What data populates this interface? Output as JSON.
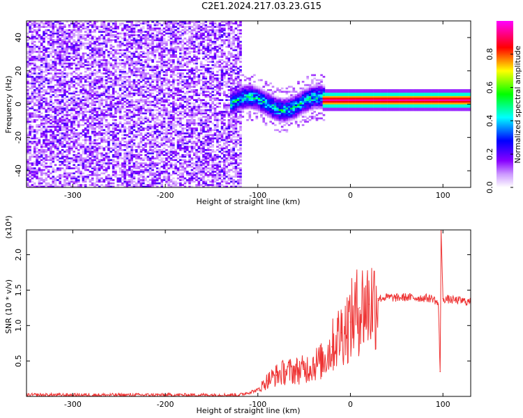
{
  "title": "C2E1.2024.217.03.23.G15",
  "chart_data": [
    {
      "type": "heatmap",
      "xlabel": "Height of straight line (km)",
      "ylabel": "Frequency (Hz)",
      "xlim": [
        -350,
        130
      ],
      "ylim": [
        -50,
        50
      ],
      "x_ticks": [
        -300,
        -200,
        -100,
        0,
        100
      ],
      "y_ticks": [
        -40,
        -20,
        0,
        20,
        40
      ],
      "colorbar": {
        "label": "Normalized spectral amplitude",
        "range": [
          0,
          1
        ],
        "ticks": [
          "0.0",
          "0.2",
          "0.4",
          "0.6",
          "0.8"
        ],
        "colormap": [
          "#ffffff",
          "#8800ff",
          "#0000ff",
          "#00ffff",
          "#00ff00",
          "#ffff00",
          "#ff0000",
          "#ff00ff"
        ]
      },
      "features": [
        {
          "region": "noise",
          "x_range": [
            -350,
            -120
          ],
          "y_range": [
            -50,
            50
          ],
          "amplitude": 0.05
        },
        {
          "region": "transition",
          "x_range": [
            -130,
            -30
          ],
          "center_freq": 0,
          "width_hz": 8,
          "amplitude": 0.5
        },
        {
          "region": "signal",
          "x_range": [
            -30,
            130
          ],
          "center_freq": 2,
          "width_hz": 2,
          "amplitude": 0.95
        }
      ]
    },
    {
      "type": "line",
      "xlabel": "Height of straight line (km)",
      "ylabel": "SNR (10 * v/v)",
      "y_multiplier": "(x10⁴)",
      "xlim": [
        -350,
        130
      ],
      "ylim": [
        0,
        23500
      ],
      "x_ticks": [
        -300,
        -200,
        -100,
        0,
        100
      ],
      "y_ticks": [
        "0.5",
        "1.0",
        "1.5",
        "2.0"
      ],
      "series": [
        {
          "color": "#ee3333",
          "x": [
            -350,
            -300,
            -200,
            -120,
            -100,
            -90,
            -80,
            -70,
            -60,
            -50,
            -40,
            -30,
            -20,
            -10,
            0,
            10,
            20,
            30,
            40,
            50,
            60,
            70,
            80,
            90,
            95,
            97,
            98,
            100,
            110,
            120,
            130
          ],
          "y": [
            200,
            200,
            200,
            200,
            900,
            2200,
            3000,
            3500,
            3600,
            3800,
            4500,
            5000,
            7000,
            9000,
            10500,
            12500,
            13000,
            13800,
            14000,
            13900,
            14000,
            13900,
            13900,
            13800,
            13000,
            3500,
            23500,
            13800,
            13600,
            13500,
            13300
          ]
        }
      ]
    }
  ]
}
